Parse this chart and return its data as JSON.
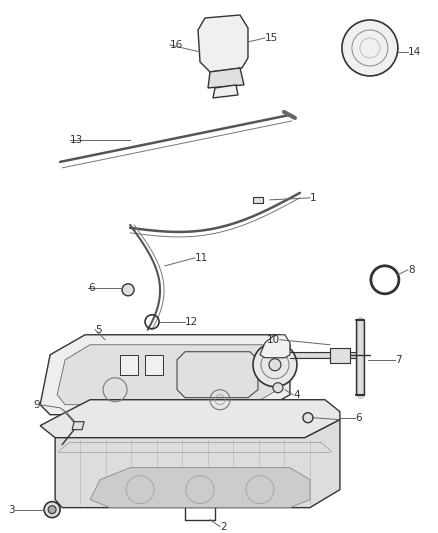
{
  "bg_color": "#ffffff",
  "fig_width": 4.38,
  "fig_height": 5.33,
  "dpi": 100,
  "line_color": "#444444",
  "label_color": "#333333",
  "part_edge": "#333333",
  "part_fill": "#f0f0f0",
  "part_fill2": "#e0e0e0",
  "label_font_size": 7.5,
  "leader_color": "#666666"
}
